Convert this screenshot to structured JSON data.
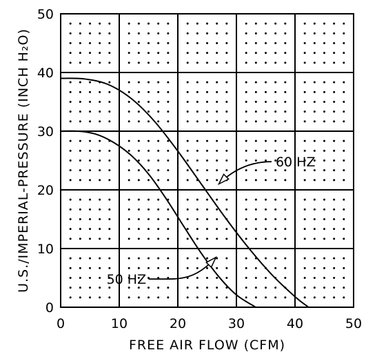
{
  "chart_data": {
    "type": "line",
    "title": "",
    "xlabel": "FREE AIR FLOW (CFM)",
    "ylabel": "U.S./IMPERIAL-PRESSURE (INCH H₂O)",
    "xlim": [
      0,
      50
    ],
    "ylim": [
      0,
      50
    ],
    "xticks": [
      "0",
      "10",
      "20",
      "30",
      "40",
      "50"
    ],
    "yticks": [
      "0",
      "10",
      "20",
      "30",
      "40",
      "50"
    ],
    "grid": true,
    "dot_grid": true,
    "series": [
      {
        "name": "60 HZ",
        "x": [
          0,
          4,
          8,
          12,
          16,
          20,
          24,
          28,
          32,
          36,
          40,
          42.3
        ],
        "y": [
          39,
          38.9,
          38,
          35.6,
          31.7,
          26.6,
          21.0,
          15.4,
          10.2,
          5.6,
          1.8,
          0
        ]
      },
      {
        "name": "50 HZ",
        "x": [
          0,
          3,
          6,
          9,
          12,
          15,
          18,
          21,
          24,
          27,
          30,
          33.3
        ],
        "y": [
          30,
          30,
          29.5,
          28.1,
          25.9,
          22.7,
          18.5,
          13.8,
          9.2,
          5.2,
          2.1,
          0
        ]
      }
    ],
    "annotations": [
      {
        "text": "60 HZ",
        "series": "60 HZ",
        "points_to": [
          27,
          21
        ]
      },
      {
        "text": "50 HZ",
        "series": "50 HZ",
        "points_to": [
          26.5,
          8.5
        ]
      }
    ]
  }
}
